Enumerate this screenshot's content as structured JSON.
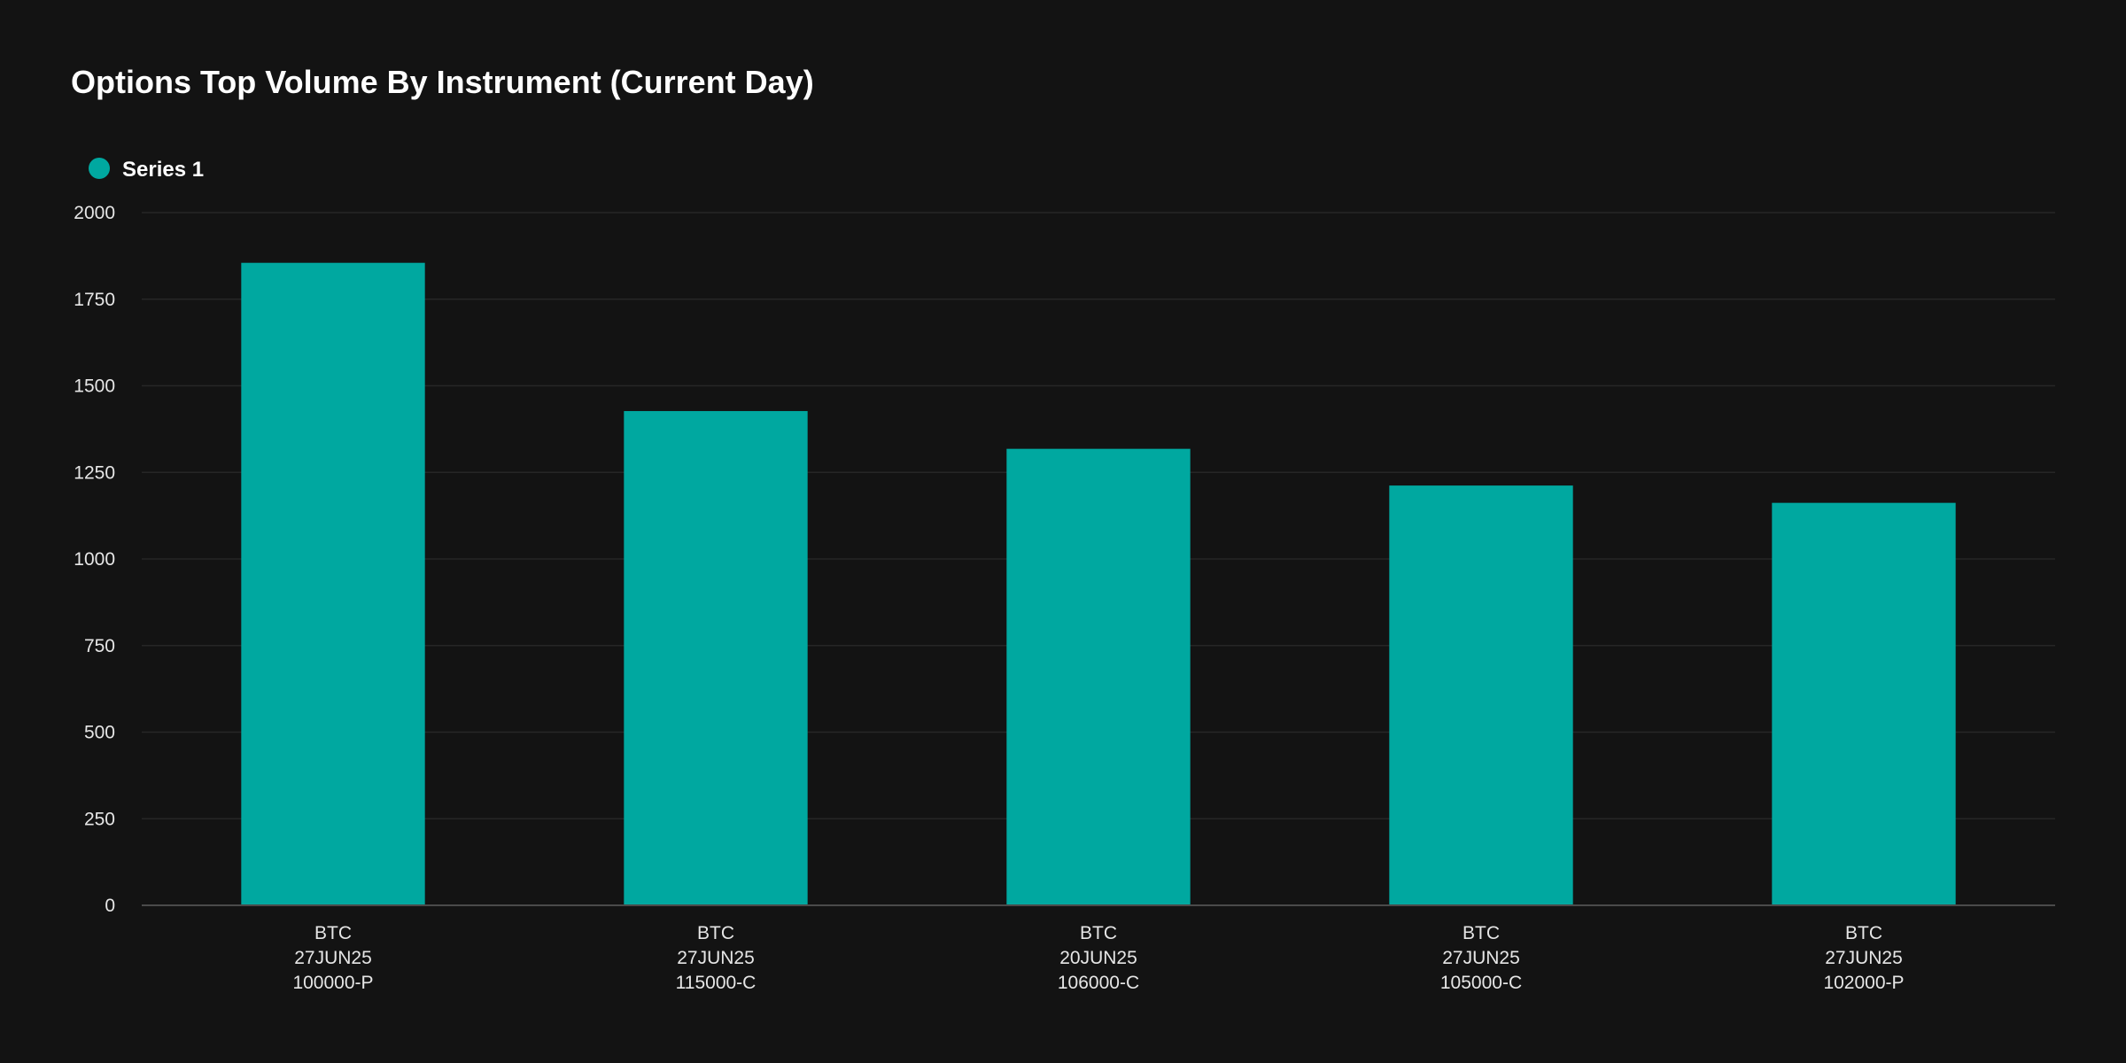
{
  "chart_data": {
    "type": "bar",
    "title": "Options Top Volume By Instrument (Current Day)",
    "xlabel": "",
    "ylabel": "",
    "categories": [
      [
        "BTC",
        "27JUN25",
        "100000-P"
      ],
      [
        "BTC",
        "27JUN25",
        "115000-C"
      ],
      [
        "BTC",
        "20JUN25",
        "106000-C"
      ],
      [
        "BTC",
        "27JUN25",
        "105000-C"
      ],
      [
        "BTC",
        "27JUN25",
        "102000-P"
      ]
    ],
    "series": [
      {
        "name": "Series 1",
        "color": "#00a8a0",
        "values": [
          1855,
          1427,
          1318,
          1212,
          1162
        ]
      }
    ],
    "yticks": [
      0,
      250,
      500,
      750,
      1000,
      1250,
      1500,
      1750,
      2000
    ],
    "ylim": [
      0,
      2000
    ],
    "grid": true,
    "legend_position": "top-left"
  },
  "colors": {
    "background": "#131313",
    "grid": "#262626",
    "axis": "#4a4a4a",
    "text": "#e6e6e6"
  }
}
